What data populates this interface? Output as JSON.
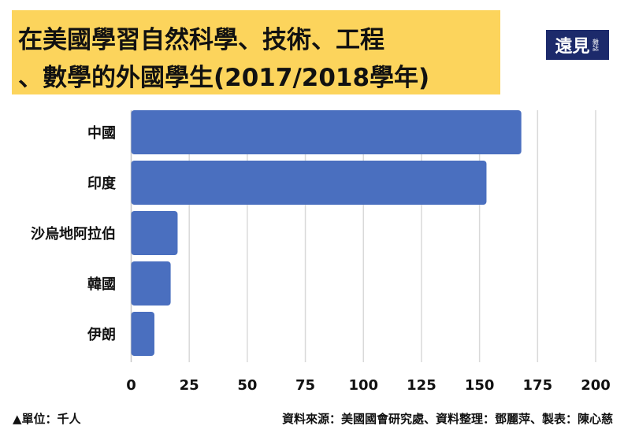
{
  "title": {
    "line1": "在美國學習自然科學、技術、工程",
    "line2": "、數學的外國學生(2017/2018學年)"
  },
  "logo": {
    "main": "遠見",
    "sub": "雜誌"
  },
  "footer": {
    "unit": "▲單位：千人",
    "source": "資料來源：美國國會研究處、資料整理：鄧麗萍、製表：陳心慈"
  },
  "colors": {
    "bar": "#4a6fbf",
    "title_bg": "#fcd45c",
    "logo_bg": "#1c2a6b",
    "grid": "#d9d9d9"
  },
  "chart_data": {
    "type": "bar",
    "orientation": "horizontal",
    "title": "在美國學習自然科學、技術、工程、數學的外國學生(2017/2018學年)",
    "categories": [
      "中國",
      "印度",
      "沙烏地阿拉伯",
      "韓國",
      "伊朗"
    ],
    "values": [
      168,
      153,
      20,
      17,
      10
    ],
    "xlabel": "",
    "ylabel": "",
    "xlim": [
      0,
      200
    ],
    "xticks": [
      0,
      25,
      50,
      75,
      100,
      125,
      150,
      175,
      200
    ],
    "grid": true,
    "unit": "千人"
  }
}
